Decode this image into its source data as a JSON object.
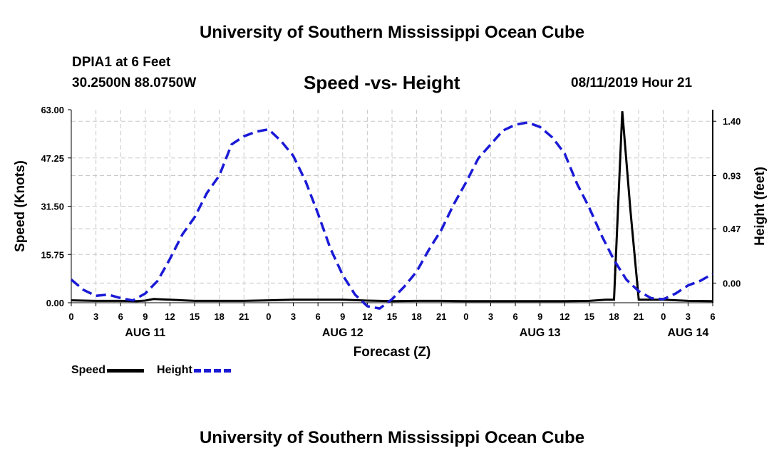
{
  "header": {
    "title": "University of Southern Mississippi Ocean Cube",
    "station": "DPIA1 at 6 Feet",
    "coords": "30.2500N 88.0750W",
    "chart_title": "Speed -vs- Height",
    "timestamp": "08/11/2019 Hour 21"
  },
  "footer": {
    "title": "University of Southern Mississippi Ocean Cube"
  },
  "legend": {
    "speed_label": "Speed",
    "height_label": "Height"
  },
  "colors": {
    "speed": "#000000",
    "height": "#1a1ad6",
    "grid": "#c8c8c8"
  },
  "chart_data": {
    "type": "line",
    "title": "Speed -vs- Height",
    "xlabel": "Forecast (Z)",
    "ylabel": "Speed (Knots)",
    "y2label": "Height (feet)",
    "xlim": [
      0,
      78
    ],
    "ylim": [
      0,
      63
    ],
    "y2lim": [
      -0.17,
      1.5
    ],
    "x_tick_labels": [
      "0",
      "3",
      "6",
      "9",
      "12",
      "15",
      "18",
      "21",
      "0",
      "3",
      "6",
      "9",
      "12",
      "15",
      "18",
      "21",
      "0",
      "3",
      "6",
      "9",
      "12",
      "15",
      "18",
      "21",
      "0",
      "3",
      "6"
    ],
    "day_labels": [
      {
        "x": 9,
        "label": "AUG 11"
      },
      {
        "x": 33,
        "label": "AUG 12"
      },
      {
        "x": 57,
        "label": "AUG 13"
      },
      {
        "x": 75,
        "label": "AUG 14"
      }
    ],
    "y_ticks": [
      0,
      15.75,
      31.5,
      47.25,
      63
    ],
    "y_tick_labels": [
      "0.00",
      "15.75",
      "31.50",
      "47.25",
      "63.00"
    ],
    "y2_ticks": [
      0,
      0.47,
      0.93,
      1.4
    ],
    "y2_tick_labels": [
      "0.00",
      "0.47",
      "0.93",
      "1.40"
    ],
    "series": [
      {
        "name": "Speed",
        "axis": "left",
        "x": [
          0,
          3,
          6,
          8,
          9,
          10,
          12,
          15,
          18,
          21,
          24,
          27,
          30,
          33,
          36,
          39,
          42,
          45,
          48,
          51,
          54,
          57,
          60,
          63,
          65,
          66,
          67,
          68,
          69,
          72,
          75,
          78
        ],
        "values": [
          0.8,
          0.6,
          0.6,
          0.5,
          0.7,
          1.2,
          1.0,
          0.6,
          0.6,
          0.6,
          0.8,
          1.0,
          1.0,
          1.0,
          0.7,
          0.5,
          0.6,
          0.6,
          0.5,
          0.5,
          0.5,
          0.5,
          0.5,
          0.6,
          1.0,
          1.0,
          62.5,
          30.0,
          1.0,
          1.0,
          0.6,
          0.5
        ]
      },
      {
        "name": "Height",
        "axis": "right",
        "x": [
          0,
          1.5,
          3,
          4.5,
          6,
          7.5,
          9,
          10.5,
          12,
          13.5,
          15,
          16.5,
          18,
          19.5,
          21,
          22.5,
          24,
          25.5,
          27,
          28.5,
          30,
          31.5,
          33,
          34.5,
          36,
          37.5,
          39,
          40.5,
          42,
          43.5,
          45,
          46.5,
          48,
          49.5,
          51,
          52.5,
          54,
          55.5,
          57,
          58.5,
          60,
          61.5,
          63,
          64.5,
          66,
          67.5,
          69,
          70.5,
          72,
          73.5,
          75,
          76.5,
          78
        ],
        "values": [
          0.03,
          -0.06,
          -0.11,
          -0.1,
          -0.13,
          -0.15,
          -0.09,
          0.02,
          0.21,
          0.42,
          0.57,
          0.78,
          0.93,
          1.2,
          1.27,
          1.31,
          1.33,
          1.23,
          1.1,
          0.88,
          0.6,
          0.3,
          0.07,
          -0.1,
          -0.2,
          -0.22,
          -0.14,
          -0.03,
          0.1,
          0.29,
          0.46,
          0.68,
          0.87,
          1.08,
          1.2,
          1.32,
          1.37,
          1.39,
          1.35,
          1.26,
          1.12,
          0.86,
          0.65,
          0.41,
          0.2,
          0.03,
          -0.07,
          -0.13,
          -0.14,
          -0.09,
          -0.02,
          0.02,
          0.08
        ]
      }
    ]
  }
}
